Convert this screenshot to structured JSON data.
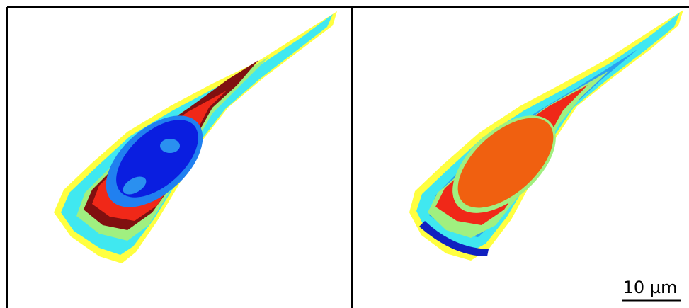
{
  "scale_bar": {
    "label": "10 µm"
  }
}
